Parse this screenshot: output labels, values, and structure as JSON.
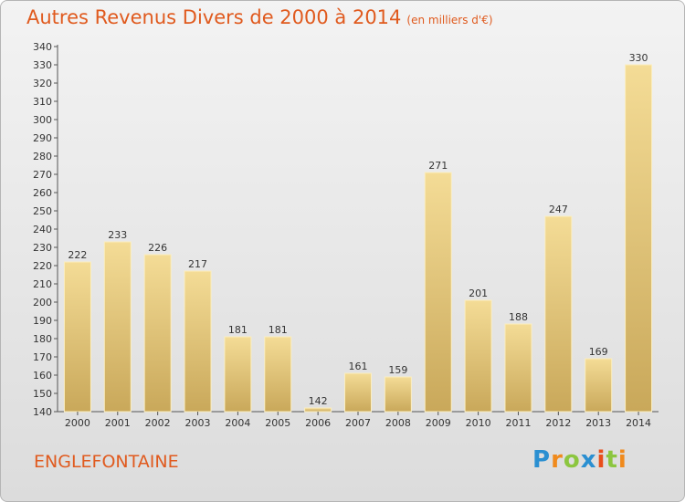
{
  "title": "Autres Revenus Divers de 2000 à 2014",
  "title_unit": "(en milliers d'€)",
  "town": "ENGLEFONTAINE",
  "logo_letters": [
    "P",
    "r",
    "o",
    "x",
    "i",
    "t",
    "i"
  ],
  "chart_data": {
    "type": "bar",
    "categories": [
      "2000",
      "2001",
      "2002",
      "2003",
      "2004",
      "2005",
      "2006",
      "2007",
      "2008",
      "2009",
      "2010",
      "2011",
      "2012",
      "2013",
      "2014"
    ],
    "values": [
      222,
      233,
      226,
      217,
      181,
      181,
      142,
      161,
      159,
      271,
      201,
      188,
      247,
      169,
      330
    ],
    "ylim": [
      140,
      340
    ],
    "ytick_step": 10,
    "grid": false,
    "bar_color_top": "#f4dc96",
    "bar_color_bottom": "#c9a85a",
    "title_color": "#e05a1e"
  }
}
